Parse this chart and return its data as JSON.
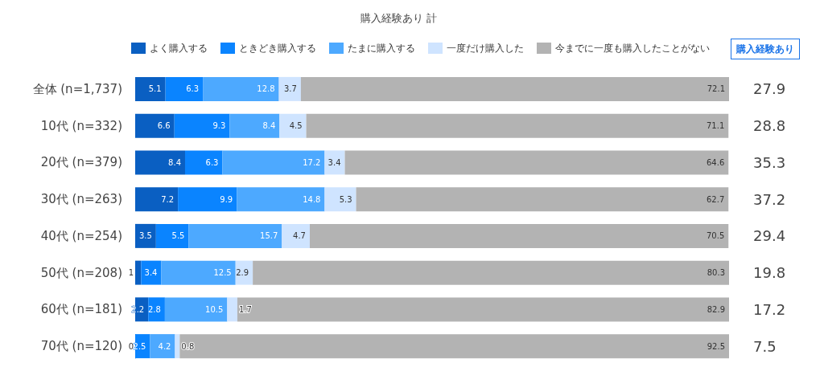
{
  "chart_data": {
    "type": "bar",
    "orientation": "horizontal",
    "stacked": true,
    "data_labels": true,
    "grid": false,
    "legend": "top",
    "tick_labels": "y",
    "annotations": [
      "購入経験あり 計",
      "購入経験あり",
      "27.9",
      "28.8",
      "35.3",
      "37.2",
      "29.4",
      "19.8",
      "17.2",
      "7.5"
    ],
    "categories": [
      "全体 (n=1,737)",
      "10代 (n=332)",
      "20代 (n=379)",
      "30代 (n=263)",
      "40代 (n=254)",
      "50代 (n=208)",
      "60代 (n=181)",
      "70代 (n=120)"
    ],
    "xlim": [
      0,
      100
    ],
    "series": [
      {
        "name": "よく購入する",
        "color": "#0a5fc2",
        "values": [
          5.1,
          6.6,
          8.4,
          7.2,
          3.5,
          1,
          2.2,
          0
        ]
      },
      {
        "name": "ときどき購入する",
        "color": "#0a84ff",
        "values": [
          6.3,
          9.3,
          6.3,
          9.9,
          5.5,
          3.4,
          2.8,
          2.5
        ]
      },
      {
        "name": "たまに購入する",
        "color": "#4da9ff",
        "values": [
          12.8,
          8.4,
          17.2,
          14.8,
          15.7,
          12.5,
          10.5,
          4.2
        ]
      },
      {
        "name": "一度だけ購入した",
        "color": "#cfe4ff",
        "values": [
          3.7,
          4.5,
          3.4,
          5.3,
          4.7,
          2.9,
          1.7,
          0.8
        ]
      },
      {
        "name": "今までに一度も購入したことがない",
        "color": "#b3b3b3",
        "values": [
          72.1,
          71.1,
          64.6,
          62.7,
          70.5,
          80.3,
          82.9,
          92.5
        ]
      }
    ]
  }
}
